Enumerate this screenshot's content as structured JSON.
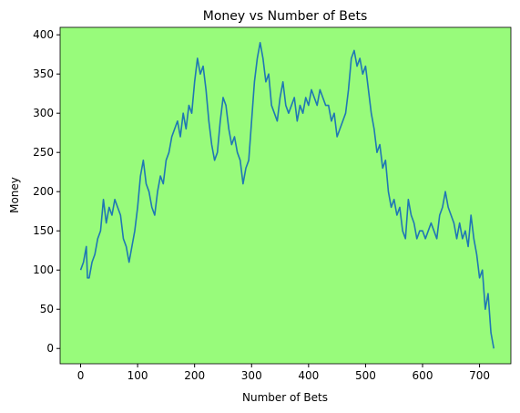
{
  "chart_data": {
    "type": "line",
    "title": "Money vs Number of Bets",
    "xlabel": "Number of Bets",
    "ylabel": "Money",
    "background": "#98fb7b",
    "x": [
      0,
      5,
      10,
      12,
      15,
      20,
      25,
      30,
      35,
      40,
      45,
      50,
      55,
      60,
      65,
      70,
      75,
      80,
      85,
      90,
      95,
      100,
      105,
      110,
      115,
      120,
      125,
      130,
      135,
      140,
      145,
      150,
      155,
      160,
      165,
      170,
      175,
      180,
      185,
      190,
      195,
      200,
      205,
      210,
      215,
      220,
      225,
      230,
      235,
      240,
      245,
      250,
      255,
      260,
      265,
      270,
      275,
      280,
      285,
      290,
      295,
      300,
      305,
      310,
      315,
      320,
      325,
      330,
      335,
      340,
      345,
      350,
      355,
      360,
      365,
      370,
      375,
      380,
      385,
      390,
      395,
      400,
      405,
      410,
      415,
      420,
      425,
      430,
      435,
      440,
      445,
      450,
      455,
      460,
      465,
      470,
      475,
      480,
      485,
      490,
      495,
      500,
      505,
      510,
      515,
      520,
      525,
      530,
      535,
      540,
      545,
      550,
      555,
      560,
      565,
      570,
      575,
      580,
      585,
      590,
      595,
      600,
      605,
      610,
      615,
      620,
      625,
      630,
      635,
      640,
      645,
      650,
      655,
      660,
      665,
      670,
      675,
      680,
      685,
      690,
      695,
      700,
      705,
      710,
      715,
      720,
      725
    ],
    "series": [
      {
        "name": "Money",
        "color": "#1f77b4",
        "values": [
          100,
          110,
          130,
          90,
          90,
          110,
          120,
          140,
          150,
          190,
          160,
          180,
          170,
          190,
          180,
          170,
          140,
          130,
          110,
          130,
          150,
          180,
          220,
          240,
          210,
          200,
          180,
          170,
          200,
          220,
          210,
          240,
          250,
          270,
          280,
          290,
          270,
          300,
          280,
          310,
          300,
          340,
          370,
          350,
          360,
          330,
          290,
          260,
          240,
          250,
          290,
          320,
          310,
          280,
          260,
          270,
          250,
          240,
          210,
          230,
          240,
          290,
          340,
          370,
          390,
          370,
          340,
          350,
          310,
          300,
          290,
          320,
          340,
          310,
          300,
          310,
          320,
          290,
          310,
          300,
          320,
          310,
          330,
          320,
          310,
          330,
          320,
          310,
          310,
          290,
          300,
          270,
          280,
          290,
          300,
          330,
          370,
          380,
          360,
          370,
          350,
          360,
          330,
          300,
          280,
          250,
          260,
          230,
          240,
          200,
          180,
          190,
          170,
          180,
          150,
          140,
          190,
          170,
          160,
          140,
          150,
          150,
          140,
          150,
          160,
          150,
          140,
          170,
          180,
          200,
          180,
          170,
          160,
          140,
          160,
          140,
          150,
          130,
          170,
          140,
          120,
          90,
          100,
          50,
          70,
          20,
          0
        ]
      }
    ],
    "xlim": [
      -36,
      755
    ],
    "ylim": [
      -19.5,
      409.5
    ],
    "xticks": [
      0,
      100,
      200,
      300,
      400,
      500,
      600,
      700
    ],
    "yticks": [
      0,
      50,
      100,
      150,
      200,
      250,
      300,
      350,
      400
    ]
  }
}
